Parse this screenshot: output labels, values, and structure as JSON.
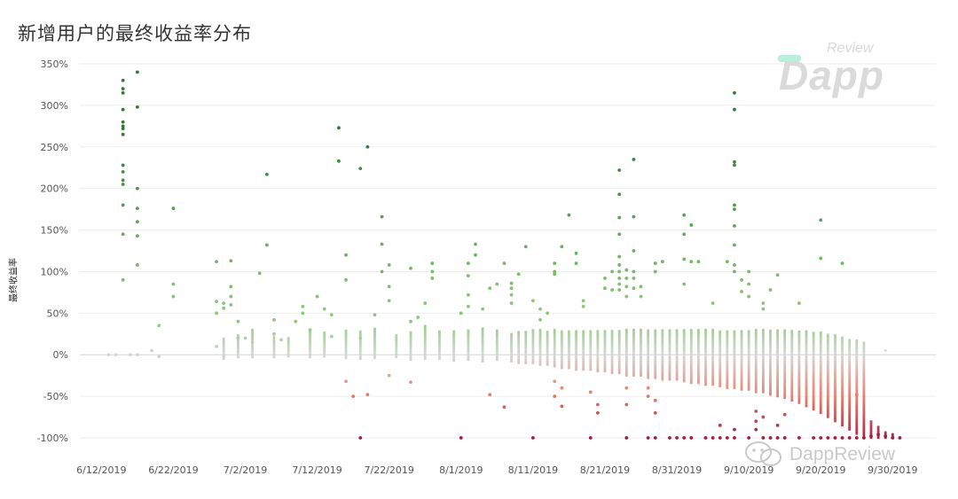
{
  "title": "新增用户的最终收益率分布",
  "watermark": {
    "review": "Review",
    "dapp": "Dapp",
    "bottom": "DappReview"
  },
  "chart_data": {
    "type": "scatter",
    "title": "新增用户的最终收益率分布",
    "xlabel": "",
    "ylabel": "最终收益率",
    "ylim": [
      -100,
      350
    ],
    "xlim": [
      "2019-06-09",
      "2019-10-06"
    ],
    "grid": true,
    "color_scale": {
      "high": "#2e7d32",
      "mid": "#d4d4d4",
      "low": "#a01c3a"
    },
    "y_ticks": [
      "350%",
      "300%",
      "250%",
      "200%",
      "150%",
      "100%",
      "50%",
      "0%",
      "-50%",
      "-100%"
    ],
    "x_ticks": [
      "6/12/2019",
      "6/22/2019",
      "7/2/2019",
      "7/12/2019",
      "7/22/2019",
      "8/1/2019",
      "8/11/2019",
      "8/21/2019",
      "8/31/2019",
      "9/10/2019",
      "9/20/2019",
      "9/30/2019"
    ],
    "points": [
      [
        "2019-06-15",
        330
      ],
      [
        "2019-06-15",
        320
      ],
      [
        "2019-06-15",
        315
      ],
      [
        "2019-06-15",
        295
      ],
      [
        "2019-06-15",
        280
      ],
      [
        "2019-06-15",
        275
      ],
      [
        "2019-06-15",
        272
      ],
      [
        "2019-06-15",
        265
      ],
      [
        "2019-06-15",
        228
      ],
      [
        "2019-06-15",
        220
      ],
      [
        "2019-06-15",
        210
      ],
      [
        "2019-06-15",
        205
      ],
      [
        "2019-06-15",
        180
      ],
      [
        "2019-06-15",
        145
      ],
      [
        "2019-06-15",
        90
      ],
      [
        "2019-06-17",
        340
      ],
      [
        "2019-06-17",
        298
      ],
      [
        "2019-06-17",
        200
      ],
      [
        "2019-06-17",
        176
      ],
      [
        "2019-06-17",
        160
      ],
      [
        "2019-06-17",
        143
      ],
      [
        "2019-06-17",
        108
      ],
      [
        "2019-06-22",
        176
      ],
      [
        "2019-06-22",
        85
      ],
      [
        "2019-06-22",
        70
      ],
      [
        "2019-06-20",
        35
      ],
      [
        "2019-06-19",
        5
      ],
      [
        "2019-06-20",
        -2
      ],
      [
        "2019-06-13",
        0
      ],
      [
        "2019-06-14",
        0
      ],
      [
        "2019-06-16",
        0
      ],
      [
        "2019-06-17",
        0
      ],
      [
        "2019-06-28",
        112
      ],
      [
        "2019-06-28",
        64
      ],
      [
        "2019-06-28",
        50
      ],
      [
        "2019-06-29",
        62
      ],
      [
        "2019-06-29",
        56
      ],
      [
        "2019-06-30",
        113
      ],
      [
        "2019-06-30",
        82
      ],
      [
        "2019-06-30",
        70
      ],
      [
        "2019-06-30",
        60
      ],
      [
        "2019-07-01",
        40
      ],
      [
        "2019-07-01",
        20
      ],
      [
        "2019-06-28",
        10
      ],
      [
        "2019-06-29",
        -2
      ],
      [
        "2019-07-02",
        20
      ],
      [
        "2019-07-03",
        15
      ],
      [
        "2019-07-04",
        98
      ],
      [
        "2019-07-05",
        217
      ],
      [
        "2019-07-05",
        132
      ],
      [
        "2019-07-06",
        42
      ],
      [
        "2019-07-06",
        25
      ],
      [
        "2019-07-07",
        18
      ],
      [
        "2019-07-09",
        40
      ],
      [
        "2019-07-10",
        58
      ],
      [
        "2019-07-10",
        50
      ],
      [
        "2019-07-11",
        30
      ],
      [
        "2019-07-12",
        70
      ],
      [
        "2019-07-13",
        55
      ],
      [
        "2019-07-14",
        48
      ],
      [
        "2019-07-14",
        22
      ],
      [
        "2019-07-15",
        273
      ],
      [
        "2019-07-15",
        233
      ],
      [
        "2019-07-16",
        120
      ],
      [
        "2019-07-16",
        90
      ],
      [
        "2019-07-16",
        -32
      ],
      [
        "2019-07-18",
        224
      ],
      [
        "2019-07-18",
        20
      ],
      [
        "2019-07-19",
        250
      ],
      [
        "2019-07-19",
        -48
      ],
      [
        "2019-07-17",
        -50
      ],
      [
        "2019-07-18",
        -100
      ],
      [
        "2019-07-21",
        166
      ],
      [
        "2019-07-21",
        133
      ],
      [
        "2019-07-21",
        100
      ],
      [
        "2019-07-22",
        108
      ],
      [
        "2019-07-22",
        82
      ],
      [
        "2019-07-22",
        65
      ],
      [
        "2019-07-20",
        48
      ],
      [
        "2019-07-22",
        -25
      ],
      [
        "2019-07-25",
        104
      ],
      [
        "2019-07-25",
        40
      ],
      [
        "2019-07-25",
        -33
      ],
      [
        "2019-07-28",
        110
      ],
      [
        "2019-07-28",
        100
      ],
      [
        "2019-07-28",
        92
      ],
      [
        "2019-07-27",
        62
      ],
      [
        "2019-07-26",
        45
      ],
      [
        "2019-08-02",
        110
      ],
      [
        "2019-08-02",
        95
      ],
      [
        "2019-08-02",
        72
      ],
      [
        "2019-08-03",
        133
      ],
      [
        "2019-08-03",
        120
      ],
      [
        "2019-08-02",
        58
      ],
      [
        "2019-08-01",
        50
      ],
      [
        "2019-08-04",
        55
      ],
      [
        "2019-08-05",
        80
      ],
      [
        "2019-08-06",
        85
      ],
      [
        "2019-08-05",
        -48
      ],
      [
        "2019-08-01",
        -100
      ],
      [
        "2019-08-07",
        110
      ],
      [
        "2019-08-08",
        86
      ],
      [
        "2019-08-08",
        80
      ],
      [
        "2019-08-08",
        72
      ],
      [
        "2019-08-08",
        62
      ],
      [
        "2019-08-09",
        97
      ],
      [
        "2019-08-10",
        130
      ],
      [
        "2019-08-07",
        -63
      ],
      [
        "2019-08-11",
        65
      ],
      [
        "2019-08-12",
        55
      ],
      [
        "2019-08-12",
        42
      ],
      [
        "2019-08-13",
        50
      ],
      [
        "2019-08-14",
        97
      ],
      [
        "2019-08-14",
        110
      ],
      [
        "2019-08-14",
        100
      ],
      [
        "2019-08-15",
        130
      ],
      [
        "2019-08-14",
        -50
      ],
      [
        "2019-08-14",
        -32
      ],
      [
        "2019-08-15",
        -40
      ],
      [
        "2019-08-15",
        -62
      ],
      [
        "2019-08-11",
        -100
      ],
      [
        "2019-08-16",
        168
      ],
      [
        "2019-08-17",
        122
      ],
      [
        "2019-08-17",
        110
      ],
      [
        "2019-08-18",
        65
      ],
      [
        "2019-08-18",
        58
      ],
      [
        "2019-08-19",
        -100
      ],
      [
        "2019-08-19",
        -45
      ],
      [
        "2019-08-20",
        -60
      ],
      [
        "2019-08-20",
        -70
      ],
      [
        "2019-08-21",
        92
      ],
      [
        "2019-08-21",
        80
      ],
      [
        "2019-08-22",
        78
      ],
      [
        "2019-08-22",
        100
      ],
      [
        "2019-08-23",
        222
      ],
      [
        "2019-08-23",
        193
      ],
      [
        "2019-08-23",
        165
      ],
      [
        "2019-08-23",
        145
      ],
      [
        "2019-08-23",
        118
      ],
      [
        "2019-08-23",
        108
      ],
      [
        "2019-08-23",
        100
      ],
      [
        "2019-08-23",
        92
      ],
      [
        "2019-08-23",
        85
      ],
      [
        "2019-08-23",
        78
      ],
      [
        "2019-08-24",
        102
      ],
      [
        "2019-08-24",
        92
      ],
      [
        "2019-08-24",
        82
      ],
      [
        "2019-08-24",
        70
      ],
      [
        "2019-08-24",
        -40
      ],
      [
        "2019-08-24",
        -60
      ],
      [
        "2019-08-24",
        -100
      ],
      [
        "2019-08-25",
        235
      ],
      [
        "2019-08-25",
        166
      ],
      [
        "2019-08-25",
        125
      ],
      [
        "2019-08-25",
        100
      ],
      [
        "2019-08-25",
        92
      ],
      [
        "2019-08-25",
        80
      ],
      [
        "2019-08-26",
        82
      ],
      [
        "2019-08-26",
        70
      ],
      [
        "2019-08-27",
        -40
      ],
      [
        "2019-08-27",
        -50
      ],
      [
        "2019-08-27",
        -100
      ],
      [
        "2019-08-28",
        110
      ],
      [
        "2019-08-28",
        100
      ],
      [
        "2019-08-28",
        -55
      ],
      [
        "2019-08-28",
        -70
      ],
      [
        "2019-08-28",
        -100
      ],
      [
        "2019-08-29",
        112
      ],
      [
        "2019-08-30",
        -100
      ],
      [
        "2019-08-31",
        -100
      ],
      [
        "2019-09-01",
        168
      ],
      [
        "2019-09-01",
        145
      ],
      [
        "2019-09-01",
        115
      ],
      [
        "2019-09-01",
        85
      ],
      [
        "2019-09-01",
        -100
      ],
      [
        "2019-09-02",
        156
      ],
      [
        "2019-09-02",
        112
      ],
      [
        "2019-09-02",
        -100
      ],
      [
        "2019-09-03",
        112
      ],
      [
        "2019-09-04",
        -100
      ],
      [
        "2019-09-05",
        62
      ],
      [
        "2019-09-05",
        -100
      ],
      [
        "2019-09-06",
        -85
      ],
      [
        "2019-09-06",
        -100
      ],
      [
        "2019-09-07",
        112
      ],
      [
        "2019-09-07",
        -100
      ],
      [
        "2019-09-08",
        315
      ],
      [
        "2019-09-08",
        295
      ],
      [
        "2019-09-08",
        232
      ],
      [
        "2019-09-08",
        228
      ],
      [
        "2019-09-08",
        180
      ],
      [
        "2019-09-08",
        175
      ],
      [
        "2019-09-08",
        155
      ],
      [
        "2019-09-08",
        132
      ],
      [
        "2019-09-08",
        108
      ],
      [
        "2019-09-08",
        100
      ],
      [
        "2019-09-08",
        -90
      ],
      [
        "2019-09-08",
        -100
      ],
      [
        "2019-09-09",
        90
      ],
      [
        "2019-09-09",
        76
      ],
      [
        "2019-09-10",
        100
      ],
      [
        "2019-09-10",
        85
      ],
      [
        "2019-09-10",
        70
      ],
      [
        "2019-09-10",
        -100
      ],
      [
        "2019-09-11",
        -68
      ],
      [
        "2019-09-11",
        -80
      ],
      [
        "2019-09-11",
        -90
      ],
      [
        "2019-09-12",
        55
      ],
      [
        "2019-09-12",
        62
      ],
      [
        "2019-09-12",
        -75
      ],
      [
        "2019-09-12",
        -100
      ],
      [
        "2019-09-13",
        78
      ],
      [
        "2019-09-13",
        -100
      ],
      [
        "2019-09-14",
        96
      ],
      [
        "2019-09-14",
        -85
      ],
      [
        "2019-09-14",
        -100
      ],
      [
        "2019-09-15",
        -72
      ],
      [
        "2019-09-15",
        -100
      ],
      [
        "2019-09-17",
        62
      ],
      [
        "2019-09-17",
        -100
      ],
      [
        "2019-09-19",
        -100
      ],
      [
        "2019-09-20",
        162
      ],
      [
        "2019-09-20",
        116
      ],
      [
        "2019-09-20",
        -100
      ],
      [
        "2019-09-21",
        -100
      ],
      [
        "2019-09-22",
        -100
      ],
      [
        "2019-09-23",
        110
      ],
      [
        "2019-09-23",
        -100
      ],
      [
        "2019-09-24",
        -100
      ],
      [
        "2019-09-25",
        -48
      ],
      [
        "2019-09-25",
        -100
      ],
      [
        "2019-09-26",
        -100
      ],
      [
        "2019-09-27",
        -98
      ],
      [
        "2019-09-28",
        -96
      ],
      [
        "2019-09-29",
        -98
      ],
      [
        "2019-09-30",
        -100
      ],
      [
        "2019-10-01",
        -100
      ]
    ],
    "daily_ranges": [
      [
        "2019-06-29",
        -5,
        20
      ],
      [
        "2019-07-01",
        -3,
        25
      ],
      [
        "2019-07-03",
        -3,
        30
      ],
      [
        "2019-07-06",
        -3,
        22
      ],
      [
        "2019-07-08",
        -2,
        22
      ],
      [
        "2019-07-11",
        -3,
        32
      ],
      [
        "2019-07-13",
        -2,
        28
      ],
      [
        "2019-07-16",
        -4,
        30
      ],
      [
        "2019-07-18",
        -5,
        28
      ],
      [
        "2019-07-20",
        -4,
        32
      ],
      [
        "2019-07-23",
        -3,
        25
      ],
      [
        "2019-07-25",
        -6,
        28
      ],
      [
        "2019-07-27",
        -5,
        35
      ],
      [
        "2019-07-29",
        -5,
        28
      ],
      [
        "2019-07-31",
        -7,
        30
      ],
      [
        "2019-08-02",
        -6,
        30
      ],
      [
        "2019-08-04",
        -8,
        32
      ],
      [
        "2019-08-06",
        -6,
        30
      ],
      [
        "2019-08-08",
        -8,
        25
      ],
      [
        "2019-08-09",
        -10,
        28
      ],
      [
        "2019-08-10",
        -10,
        28
      ],
      [
        "2019-08-11",
        -10,
        30
      ],
      [
        "2019-08-12",
        -12,
        30
      ],
      [
        "2019-08-13",
        -12,
        28
      ],
      [
        "2019-08-14",
        -14,
        30
      ],
      [
        "2019-08-15",
        -16,
        28
      ],
      [
        "2019-08-16",
        -16,
        30
      ],
      [
        "2019-08-17",
        -18,
        30
      ],
      [
        "2019-08-18",
        -18,
        30
      ],
      [
        "2019-08-19",
        -18,
        30
      ],
      [
        "2019-08-20",
        -20,
        30
      ],
      [
        "2019-08-21",
        -20,
        30
      ],
      [
        "2019-08-22",
        -22,
        30
      ],
      [
        "2019-08-23",
        -22,
        30
      ],
      [
        "2019-08-24",
        -25,
        30
      ],
      [
        "2019-08-25",
        -25,
        30
      ],
      [
        "2019-08-26",
        -25,
        30
      ],
      [
        "2019-08-27",
        -28,
        30
      ],
      [
        "2019-08-28",
        -28,
        30
      ],
      [
        "2019-08-29",
        -30,
        30
      ],
      [
        "2019-08-30",
        -30,
        30
      ],
      [
        "2019-08-31",
        -30,
        30
      ],
      [
        "2019-09-01",
        -32,
        30
      ],
      [
        "2019-09-02",
        -34,
        30
      ],
      [
        "2019-09-03",
        -34,
        30
      ],
      [
        "2019-09-04",
        -36,
        30
      ],
      [
        "2019-09-05",
        -36,
        30
      ],
      [
        "2019-09-06",
        -38,
        30
      ],
      [
        "2019-09-07",
        -40,
        30
      ],
      [
        "2019-09-08",
        -40,
        30
      ],
      [
        "2019-09-09",
        -42,
        30
      ],
      [
        "2019-09-10",
        -42,
        30
      ],
      [
        "2019-09-11",
        -45,
        30
      ],
      [
        "2019-09-12",
        -45,
        30
      ],
      [
        "2019-09-13",
        -48,
        30
      ],
      [
        "2019-09-14",
        -50,
        30
      ],
      [
        "2019-09-15",
        -52,
        30
      ],
      [
        "2019-09-16",
        -55,
        30
      ],
      [
        "2019-09-17",
        -58,
        30
      ],
      [
        "2019-09-18",
        -62,
        30
      ],
      [
        "2019-09-19",
        -66,
        28
      ],
      [
        "2019-09-20",
        -70,
        28
      ],
      [
        "2019-09-21",
        -75,
        25
      ],
      [
        "2019-09-22",
        -80,
        25
      ],
      [
        "2019-09-23",
        -85,
        22
      ],
      [
        "2019-09-24",
        -90,
        20
      ],
      [
        "2019-09-25",
        -95,
        18
      ],
      [
        "2019-09-26",
        -100,
        15
      ],
      [
        "2019-09-27",
        -100,
        -80
      ],
      [
        "2019-09-28",
        -100,
        -85
      ],
      [
        "2019-09-29",
        -100,
        -92
      ],
      [
        "2019-09-30",
        -100,
        -95
      ],
      [
        "2019-10-01",
        -100,
        -98
      ],
      [
        "2019-09-29",
        5,
        5
      ]
    ]
  }
}
